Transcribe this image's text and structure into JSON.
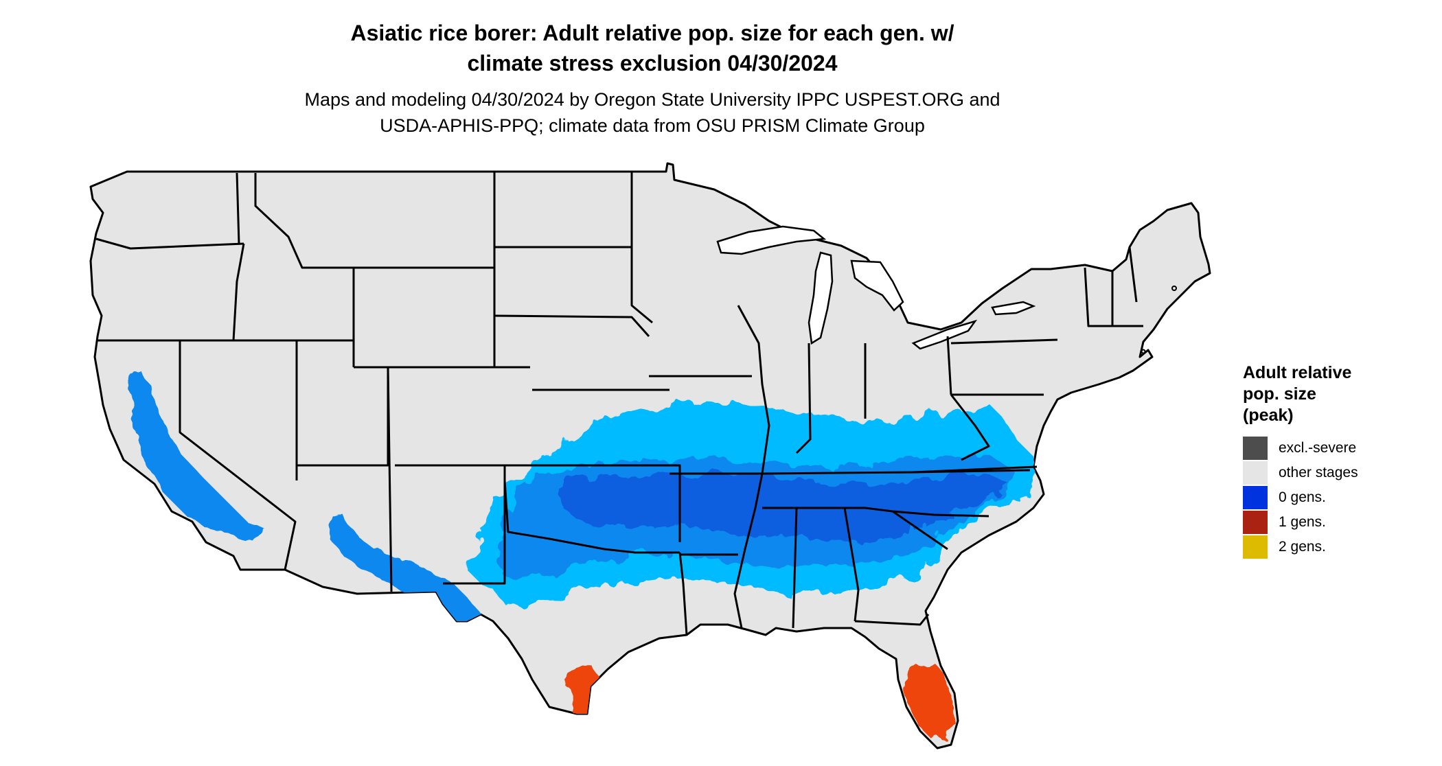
{
  "title_lines": [
    "Asiatic rice borer: Adult relative pop. size for each gen. w/",
    "climate stress exclusion 04/30/2024"
  ],
  "subtitle_lines": [
    "Maps and modeling 04/30/2024 by Oregon State University IPPC USPEST.ORG and",
    "USDA-APHIS-PPQ; climate data from OSU PRISM Climate Group"
  ],
  "legend": {
    "title_lines": [
      "Adult relative",
      "pop. size",
      "(peak)"
    ],
    "items": [
      {
        "label": "excl.-severe",
        "color": "#4d4d4d"
      },
      {
        "label": "other stages",
        "color": "#e5e5e5"
      },
      {
        "label": "0 gens.",
        "color": "#0033dd"
      },
      {
        "label": "1 gens.",
        "color": "#aa2211"
      },
      {
        "label": "2 gens.",
        "color": "#ddbb00"
      }
    ]
  },
  "map": {
    "land_color": "#e5e5e5",
    "border_color": "#000000",
    "fill_colors": {
      "zero_gens_light": "#00bbff",
      "zero_gens_mid": "#1188ee",
      "zero_gens_dark": "#0a5fe0",
      "one_gen": "#ee4411"
    }
  }
}
